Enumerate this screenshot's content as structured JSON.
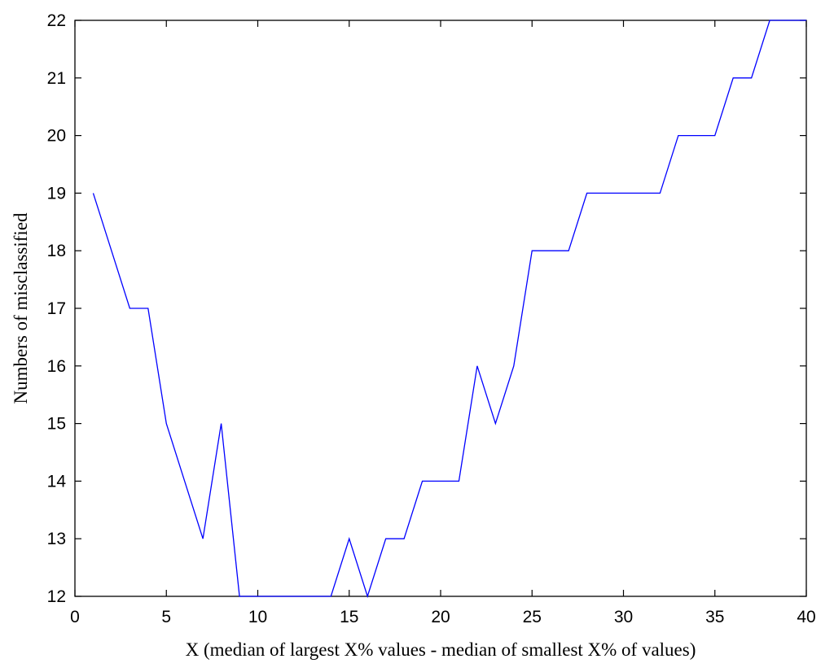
{
  "chart_data": {
    "type": "line",
    "title": "",
    "xlabel": "X (median of largest X% values - median of smallest X% of values)",
    "ylabel": "Numbers of misclassified",
    "xlim": [
      0,
      40
    ],
    "ylim": [
      12,
      22
    ],
    "x_ticks": [
      0,
      5,
      10,
      15,
      20,
      25,
      30,
      35,
      40
    ],
    "y_ticks": [
      12,
      13,
      14,
      15,
      16,
      17,
      18,
      19,
      20,
      21,
      22
    ],
    "grid": false,
    "line_color": "#0000ff",
    "series": [
      {
        "x": [
          1,
          2,
          3,
          4,
          5,
          6,
          7,
          8,
          9,
          10,
          11,
          12,
          13,
          14,
          15,
          16,
          17,
          18,
          19,
          20,
          21,
          22,
          23,
          24,
          25,
          26,
          27,
          28,
          29,
          30,
          31,
          32,
          33,
          34,
          35,
          36,
          37,
          38,
          39,
          40
        ],
        "values": [
          19,
          18,
          17,
          17,
          15,
          14,
          13,
          15,
          12,
          12,
          12,
          12,
          12,
          12,
          13,
          12,
          13,
          13,
          14,
          14,
          14,
          16,
          15,
          16,
          18,
          18,
          18,
          19,
          19,
          19,
          19,
          19,
          20,
          20,
          20,
          21,
          21,
          22,
          22,
          22
        ]
      }
    ]
  }
}
